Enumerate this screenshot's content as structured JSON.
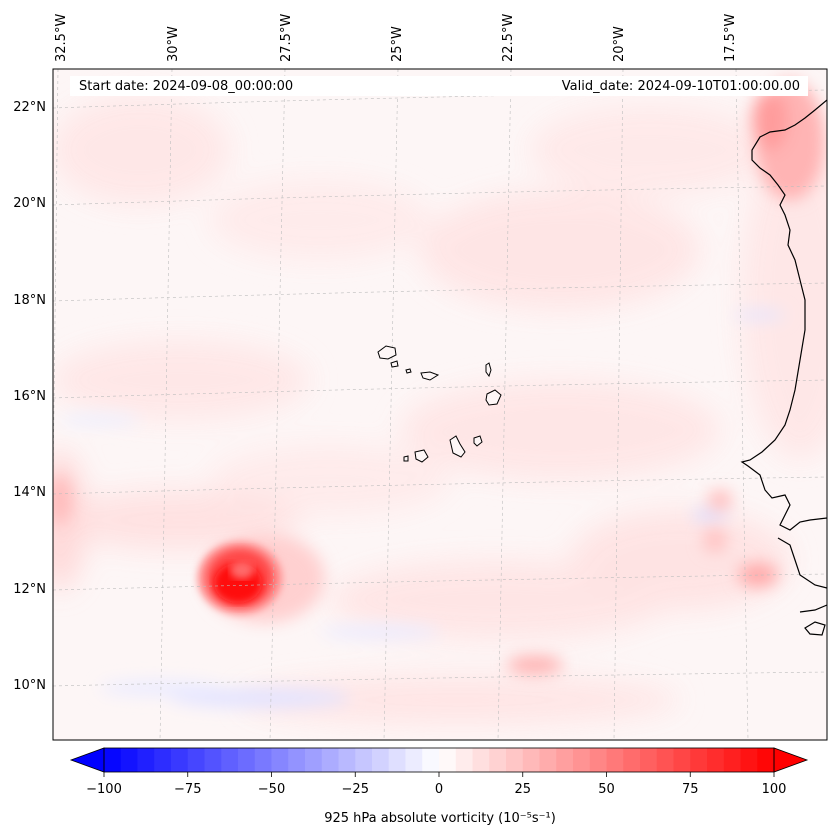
{
  "map": {
    "start_date": "Start date: 2024-09-08_00:00:00",
    "valid_date": "Valid_date: 2024-09-10T01:00:00.00",
    "lon_labels": [
      "32.5°W",
      "30°W",
      "27.5°W",
      "25°W",
      "22.5°W",
      "20°W",
      "17.5°W"
    ],
    "lat_labels": [
      "22°N",
      "20°N",
      "18°N",
      "16°N",
      "14°N",
      "12°N",
      "10°N"
    ],
    "gridlines": true,
    "land_feature": "coastline",
    "islands": "Cape Verde",
    "coast": "West Africa"
  },
  "colorbar": {
    "label_html": "925 hPa absolute vorticity (10⁻⁵s⁻¹)",
    "ticks": [
      "−100",
      "−75",
      "−50",
      "−25",
      "0",
      "25",
      "50",
      "75",
      "100"
    ],
    "range": [
      -100,
      100
    ],
    "step": 5,
    "cmap": "bwr",
    "extend": "both"
  },
  "features": [
    {
      "name": "vortex",
      "value": 95,
      "lat": 12.0,
      "lon": -28.8
    },
    {
      "name": "coastal-high",
      "value": 40,
      "lat": 21.5,
      "lon": -17.0
    },
    {
      "name": "small-high",
      "value": 35,
      "lat": 12.1,
      "lon": -17.2
    },
    {
      "name": "small-high",
      "value": 30,
      "lat": 10.3,
      "lon": -22.8
    },
    {
      "name": "band-low",
      "value": -20,
      "lat": 9.8,
      "lon": -28.2
    }
  ]
}
